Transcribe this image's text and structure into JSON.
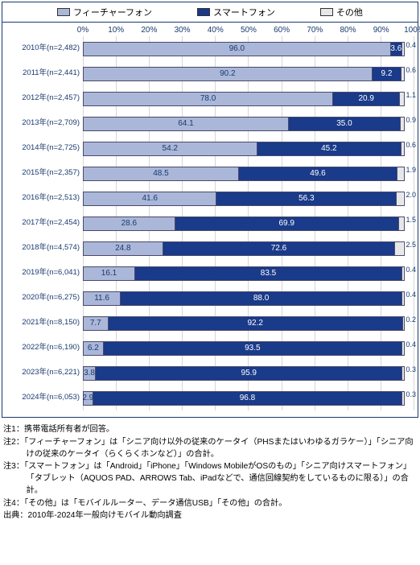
{
  "legend": {
    "items": [
      {
        "label": "フィーチャーフォン",
        "color": "#aab7d9"
      },
      {
        "label": "スマートフォン",
        "color": "#1a3a8a"
      },
      {
        "label": "その他",
        "color": "#e7e7ea"
      }
    ]
  },
  "axis": {
    "ticks": [
      "0%",
      "10%",
      "20%",
      "30%",
      "40%",
      "50%",
      "60%",
      "70%",
      "80%",
      "90%",
      "100%"
    ],
    "grid_color": "#d6d6d6"
  },
  "colors": {
    "feature": "#aab7d9",
    "smart": "#1a3a8a",
    "other": "#e7e7ea",
    "border": "#1a3a6e",
    "text_axis": "#1a3a6e"
  },
  "rows": [
    {
      "label": "2010年(n=2,482)",
      "a": 96.0,
      "b": 3.6,
      "c": 0.4,
      "a_lbl": "96.0",
      "b_lbl": "3.6",
      "c_lbl": "0.4"
    },
    {
      "label": "2011年(n=2,441)",
      "a": 90.2,
      "b": 9.2,
      "c": 0.6,
      "a_lbl": "90.2",
      "b_lbl": "9.2",
      "c_lbl": "0.6"
    },
    {
      "label": "2012年(n=2,457)",
      "a": 78.0,
      "b": 20.9,
      "c": 1.1,
      "a_lbl": "78.0",
      "b_lbl": "20.9",
      "c_lbl": "1.1"
    },
    {
      "label": "2013年(n=2,709)",
      "a": 64.1,
      "b": 35.0,
      "c": 0.9,
      "a_lbl": "64.1",
      "b_lbl": "35.0",
      "c_lbl": "0.9"
    },
    {
      "label": "2014年(n=2,725)",
      "a": 54.2,
      "b": 45.2,
      "c": 0.6,
      "a_lbl": "54.2",
      "b_lbl": "45.2",
      "c_lbl": "0.6"
    },
    {
      "label": "2015年(n=2,357)",
      "a": 48.5,
      "b": 49.6,
      "c": 1.9,
      "a_lbl": "48.5",
      "b_lbl": "49.6",
      "c_lbl": "1.9"
    },
    {
      "label": "2016年(n=2,513)",
      "a": 41.6,
      "b": 56.3,
      "c": 2.0,
      "a_lbl": "41.6",
      "b_lbl": "56.3",
      "c_lbl": "2.0"
    },
    {
      "label": "2017年(n=2,454)",
      "a": 28.6,
      "b": 69.9,
      "c": 1.5,
      "a_lbl": "28.6",
      "b_lbl": "69.9",
      "c_lbl": "1.5"
    },
    {
      "label": "2018年(n=4,574)",
      "a": 24.8,
      "b": 72.6,
      "c": 2.5,
      "a_lbl": "24.8",
      "b_lbl": "72.6",
      "c_lbl": "2.5"
    },
    {
      "label": "2019年(n=6,041)",
      "a": 16.1,
      "b": 83.5,
      "c": 0.4,
      "a_lbl": "16.1",
      "b_lbl": "83.5",
      "c_lbl": "0.4"
    },
    {
      "label": "2020年(n=6,275)",
      "a": 11.6,
      "b": 88.0,
      "c": 0.4,
      "a_lbl": "11.6",
      "b_lbl": "88.0",
      "c_lbl": "0.4"
    },
    {
      "label": "2021年(n=8,150)",
      "a": 7.7,
      "b": 92.2,
      "c": 0.2,
      "a_lbl": "7.7",
      "b_lbl": "92.2",
      "c_lbl": "0.2"
    },
    {
      "label": "2022年(n=6,190)",
      "a": 6.2,
      "b": 93.5,
      "c": 0.4,
      "a_lbl": "6.2",
      "b_lbl": "93.5",
      "c_lbl": "0.4"
    },
    {
      "label": "2023年(n=6,221)",
      "a": 3.8,
      "b": 95.9,
      "c": 0.3,
      "a_lbl": "3.8",
      "b_lbl": "95.9",
      "c_lbl": "0.3"
    },
    {
      "label": "2024年(n=6,053)",
      "a": 2.9,
      "b": 96.8,
      "c": 0.3,
      "a_lbl": "2.9",
      "b_lbl": "96.8",
      "c_lbl": "0.3"
    }
  ],
  "notes": [
    "注1：携帯電話所有者が回答。",
    "注2：「フィーチャーフォン」は「シニア向け以外の従来のケータイ（PHSまたはいわゆるガラケー）」「シニア向けの従来のケータイ（らくらくホンなど）」の合計。",
    "注3：「スマートフォン」は「Android」「iPhone」「Windows MobileがOSのもの」「シニア向けスマートフォン」「タブレット（AQUOS PAD、ARROWS Tab、iPadなどで、通信回線契約をしているものに限る）」の合計。",
    "注4：「その他」は「モバイルルーター、データ通信USB」「その他」の合計。",
    "出典：2010年-2024年一般向けモバイル動向調査"
  ]
}
